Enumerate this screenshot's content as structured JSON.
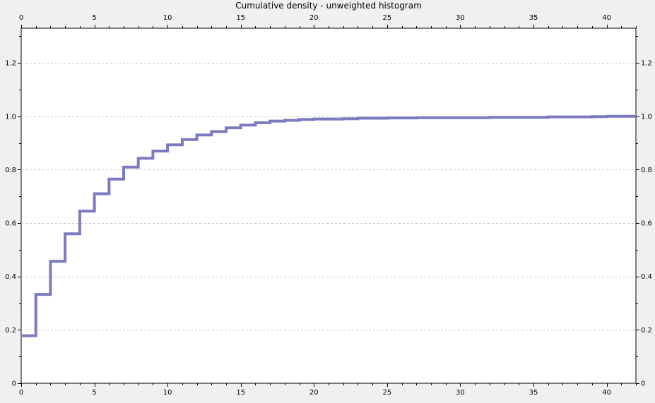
{
  "chart_data": {
    "type": "line",
    "step": true,
    "title": "Cumulative density - unweighted histogram",
    "xlabel": "",
    "ylabel": "",
    "xlim": [
      0,
      42
    ],
    "ylim": [
      0,
      1.33
    ],
    "x_ticks": [
      0,
      5,
      10,
      15,
      20,
      25,
      30,
      35,
      40
    ],
    "x_tick_labels": [
      "0",
      "5",
      "10",
      "15",
      "20",
      "25",
      "30",
      "35",
      "40"
    ],
    "y_ticks": [
      0,
      0.2,
      0.4,
      0.6,
      0.8,
      1.0,
      1.2
    ],
    "y_tick_labels": [
      "0",
      "0.2",
      "0.4",
      "0.6",
      "0.8",
      "1.0",
      "1.2"
    ],
    "grid": "horizontal-dashed",
    "mirrored_axes": true,
    "line_color": "#7b7bbf",
    "series": [
      {
        "x": [
          0,
          1,
          2,
          3,
          4,
          5,
          6,
          7,
          8,
          9,
          10,
          11,
          12,
          13,
          14,
          15,
          16,
          17,
          18,
          19,
          20,
          21,
          22,
          23,
          24,
          25,
          26,
          27,
          28,
          29,
          30,
          31,
          32,
          33,
          34,
          35,
          36,
          37,
          38,
          39,
          40,
          41,
          42
        ],
        "values": [
          0.178,
          0.333,
          0.457,
          0.56,
          0.645,
          0.71,
          0.765,
          0.81,
          0.843,
          0.87,
          0.893,
          0.913,
          0.93,
          0.943,
          0.957,
          0.967,
          0.976,
          0.982,
          0.985,
          0.988,
          0.99,
          0.99,
          0.991,
          0.993,
          0.993,
          0.994,
          0.994,
          0.995,
          0.995,
          0.995,
          0.995,
          0.995,
          0.996,
          0.996,
          0.996,
          0.996,
          0.998,
          0.998,
          0.998,
          0.999,
          1.0,
          1.0,
          1.0
        ]
      }
    ]
  }
}
